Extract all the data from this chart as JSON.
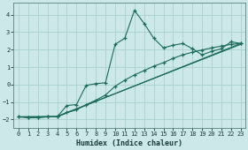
{
  "background_color": "#cce8e8",
  "grid_color": "#aacfcf",
  "line_color": "#1a6b5a",
  "xlabel": "Humidex (Indice chaleur)",
  "xlim": [
    -0.5,
    23.5
  ],
  "ylim": [
    -2.5,
    4.7
  ],
  "xticks": [
    0,
    1,
    2,
    3,
    4,
    5,
    6,
    7,
    8,
    9,
    10,
    11,
    12,
    13,
    14,
    15,
    16,
    17,
    18,
    19,
    20,
    21,
    22,
    23
  ],
  "yticks": [
    -2,
    -1,
    0,
    1,
    2,
    3,
    4
  ],
  "line1_x": [
    0,
    1,
    2,
    3,
    4,
    5,
    6,
    7,
    8,
    9,
    10,
    11,
    12,
    13,
    14,
    15,
    16,
    17,
    18,
    19,
    20,
    21,
    22,
    23
  ],
  "line1_y": [
    -1.85,
    -1.9,
    -1.9,
    -1.85,
    -1.85,
    -1.2,
    -1.15,
    -0.05,
    0.05,
    0.1,
    2.3,
    2.65,
    4.25,
    3.5,
    2.65,
    2.1,
    2.25,
    2.35,
    2.05,
    1.7,
    1.9,
    2.05,
    2.45,
    2.35
  ],
  "line2_x": [
    0,
    1,
    2,
    3,
    4,
    5,
    6,
    7,
    8,
    9,
    10,
    11,
    12,
    13,
    14,
    15,
    16,
    17,
    18,
    19,
    20,
    21,
    22,
    23
  ],
  "line2_y": [
    -1.85,
    -1.88,
    -1.88,
    -1.85,
    -1.85,
    -1.6,
    -1.45,
    -1.15,
    -0.9,
    -0.6,
    -0.1,
    0.25,
    0.55,
    0.8,
    1.05,
    1.25,
    1.5,
    1.7,
    1.85,
    1.98,
    2.1,
    2.2,
    2.3,
    2.35
  ],
  "line3_x": [
    0,
    4,
    23
  ],
  "line3_y": [
    -1.85,
    -1.85,
    2.35
  ],
  "line4_x": [
    0,
    4,
    23
  ],
  "line4_y": [
    -1.85,
    -1.82,
    2.3
  ]
}
